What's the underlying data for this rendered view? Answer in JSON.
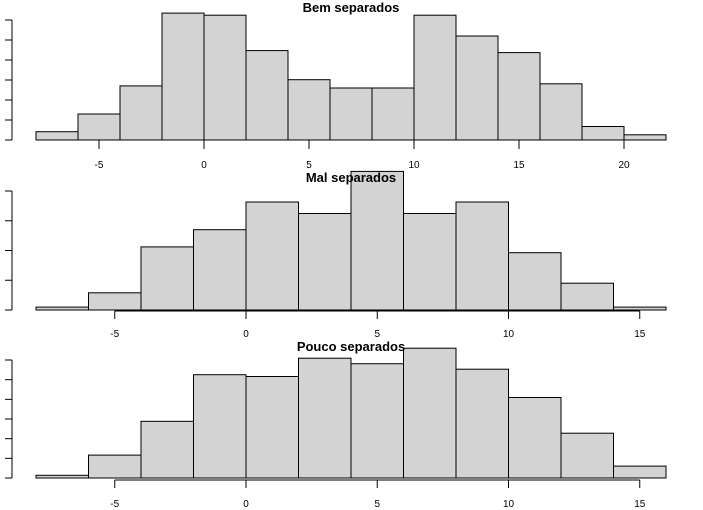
{
  "chart_data": [
    {
      "type": "bar",
      "title": "Bem separados",
      "xlabel": "",
      "ylabel": "",
      "x_ticks": [
        -5,
        0,
        5,
        10,
        15,
        20
      ],
      "xlim": [
        -8,
        22
      ],
      "ylim": [
        0,
        125
      ],
      "bin_edges": [
        -8,
        -6,
        -4,
        -2,
        0,
        2,
        4,
        6,
        8,
        10,
        12,
        14,
        16,
        18,
        20,
        22
      ],
      "values": [
        8,
        25,
        52,
        122,
        120,
        86,
        58,
        50,
        50,
        120,
        100,
        84,
        54,
        13,
        5
      ],
      "grid": false
    },
    {
      "type": "bar",
      "title": "Mal separados",
      "xlabel": "",
      "ylabel": "",
      "x_ticks": [
        -5,
        0,
        5,
        10,
        15
      ],
      "xlim": [
        -8,
        16
      ],
      "ylim": [
        0,
        135
      ],
      "bin_edges": [
        -8,
        -6,
        -4,
        -2,
        0,
        2,
        4,
        6,
        8,
        10,
        12,
        14,
        16
      ],
      "values": [
        3,
        18,
        66,
        84,
        113,
        101,
        145,
        101,
        113,
        60,
        28,
        3
      ],
      "grid": false
    },
    {
      "type": "bar",
      "title": "Pouco separados",
      "xlabel": "",
      "ylabel": "",
      "x_ticks": [
        -5,
        0,
        5,
        10,
        15
      ],
      "xlim": [
        -8,
        16
      ],
      "ylim": [
        0,
        140
      ],
      "bin_edges": [
        -8,
        -6,
        -4,
        -2,
        0,
        2,
        4,
        6,
        8,
        10,
        12,
        14,
        16
      ],
      "values": [
        3,
        25,
        62,
        113,
        111,
        131,
        125,
        142,
        119,
        88,
        49,
        13
      ],
      "grid": false
    }
  ]
}
